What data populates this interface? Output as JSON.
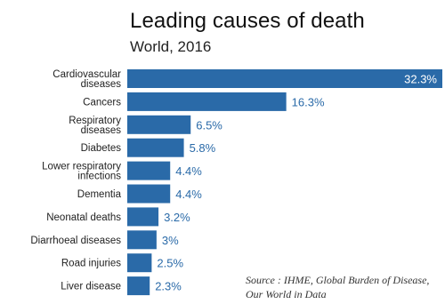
{
  "title": "Leading causes of death",
  "subtitle": "World, 2016",
  "source": {
    "line1": "Source : IHME, Global Burden of Disease,",
    "line2": "Our World in Data"
  },
  "colors": {
    "bar": "#2a6aa8",
    "label_outside": "#2a6aa8",
    "label_inside": "#ffffff",
    "category": "#222222"
  },
  "chart_data": {
    "type": "bar",
    "orientation": "horizontal",
    "categories": [
      "Cardiovascular diseases",
      "Cancers",
      "Respiratory diseases",
      "Diabetes",
      "Lower respiratory infections",
      "Dementia",
      "Neonatal deaths",
      "Diarrhoeal diseases",
      "Road injuries",
      "Liver disease"
    ],
    "category_lines": [
      [
        "Cardiovascular",
        "diseases"
      ],
      [
        "Cancers"
      ],
      [
        "Respiratory",
        "diseases"
      ],
      [
        "Diabetes"
      ],
      [
        "Lower respiratory",
        "infections"
      ],
      [
        "Dementia"
      ],
      [
        "Neonatal deaths"
      ],
      [
        "Diarrhoeal diseases"
      ],
      [
        "Road injuries"
      ],
      [
        "Liver disease"
      ]
    ],
    "values": [
      32.3,
      16.3,
      6.5,
      5.8,
      4.4,
      4.4,
      3.2,
      3,
      2.5,
      2.3
    ],
    "value_labels": [
      "32.3%",
      "16.3%",
      "6.5%",
      "5.8%",
      "4.4%",
      "4.4%",
      "3.2%",
      "3%",
      "2.5%",
      "2.3%"
    ],
    "unit": "%",
    "xlim": [
      0,
      32.3
    ],
    "grid": false,
    "legend": "none"
  }
}
